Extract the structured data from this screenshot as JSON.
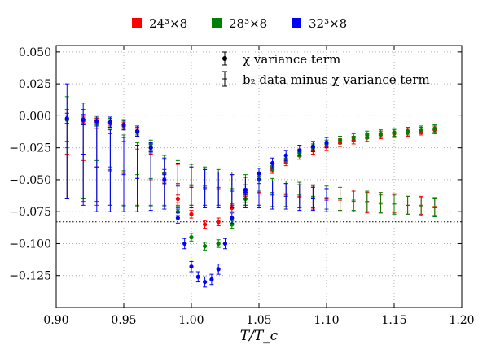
{
  "chart_data": {
    "type": "scatter",
    "xlabel": "T/T_c",
    "xlim": [
      0.9,
      1.2
    ],
    "ylim": [
      -0.15,
      0.055
    ],
    "x_ticks": [
      0.9,
      0.95,
      1.0,
      1.05,
      1.1,
      1.15,
      1.2
    ],
    "x_tick_labels": [
      "0.90",
      "0.95",
      "1.00",
      "1.05",
      "1.10",
      "1.15",
      "1.20"
    ],
    "y_ticks": [
      0.05,
      0.025,
      0.0,
      -0.025,
      -0.05,
      -0.075,
      -0.1,
      -0.125
    ],
    "y_tick_labels": [
      "0.050",
      "0.025",
      "0.000",
      "−0.025",
      "−0.050",
      "−0.075",
      "−0.100",
      "−0.125"
    ],
    "grid": true,
    "reference_line": {
      "y": -0.083,
      "style": "dotted"
    },
    "top_legend": [
      {
        "label": "24³×8",
        "color": "#ff0000"
      },
      {
        "label": "28³×8",
        "color": "#008000"
      },
      {
        "label": "32³×8",
        "color": "#0000ff"
      }
    ],
    "inner_legend": {
      "placement": "top-center",
      "entries": [
        {
          "label": "χ variance term",
          "marker": "filled-circle"
        },
        {
          "label": "b₂ data minus χ variance term",
          "marker": "cap-errorbar"
        }
      ]
    },
    "series": [
      {
        "name": "24³×8",
        "color": "#ff0000",
        "variance_term": {
          "x": [
            0.908,
            0.92,
            0.93,
            0.94,
            0.95,
            0.96,
            0.97,
            0.98,
            0.99,
            1.0,
            1.01,
            1.02,
            1.03,
            1.04,
            1.05,
            1.06,
            1.07,
            1.08,
            1.09,
            1.1,
            1.11,
            1.12,
            1.13,
            1.14,
            1.15,
            1.16,
            1.17,
            1.18
          ],
          "y": [
            -0.003,
            -0.004,
            -0.005,
            -0.006,
            -0.008,
            -0.013,
            -0.025,
            -0.045,
            -0.065,
            -0.077,
            -0.085,
            -0.083,
            -0.072,
            -0.06,
            -0.05,
            -0.042,
            -0.036,
            -0.031,
            -0.027,
            -0.024,
            -0.021,
            -0.019,
            -0.017,
            -0.015,
            -0.014,
            -0.013,
            -0.012,
            -0.011
          ],
          "err": 0.003
        },
        "difference_term": {
          "x": [
            0.908,
            0.92,
            0.93,
            0.94,
            0.95,
            0.96,
            0.97,
            0.98,
            0.99,
            1.0,
            1.01,
            1.02,
            1.03,
            1.04,
            1.05,
            1.06,
            1.07,
            1.08,
            1.09,
            1.1,
            1.11,
            1.12,
            1.13,
            1.14,
            1.15,
            1.16,
            1.17,
            1.18
          ],
          "y": [
            -0.03,
            -0.035,
            -0.04,
            -0.042,
            -0.045,
            -0.048,
            -0.05,
            -0.052,
            -0.054,
            -0.055,
            -0.056,
            -0.057,
            -0.058,
            -0.059,
            -0.06,
            -0.061,
            -0.062,
            -0.063,
            -0.064,
            -0.065,
            -0.066,
            -0.067,
            -0.068,
            -0.069,
            -0.069,
            -0.07,
            -0.07,
            -0.071
          ],
          "err": [
            0.035,
            0.032,
            0.03,
            0.028,
            0.025,
            0.022,
            0.02,
            0.018,
            0.016,
            0.015,
            0.014,
            0.013,
            0.012,
            0.011,
            0.01,
            0.01,
            0.009,
            0.009,
            0.009,
            0.008,
            0.008,
            0.008,
            0.008,
            0.007,
            0.007,
            0.007,
            0.007,
            0.007
          ]
        }
      },
      {
        "name": "28³×8",
        "color": "#008000",
        "variance_term": {
          "x": [
            0.908,
            0.92,
            0.93,
            0.94,
            0.95,
            0.96,
            0.97,
            0.98,
            0.99,
            1.0,
            1.01,
            1.02,
            1.03,
            1.04,
            1.05,
            1.06,
            1.07,
            1.08,
            1.09,
            1.1,
            1.11,
            1.12,
            1.13,
            1.14,
            1.15,
            1.16,
            1.17,
            1.18
          ],
          "y": [
            -0.003,
            -0.003,
            -0.004,
            -0.005,
            -0.007,
            -0.012,
            -0.022,
            -0.045,
            -0.075,
            -0.095,
            -0.102,
            -0.1,
            -0.085,
            -0.065,
            -0.05,
            -0.04,
            -0.034,
            -0.029,
            -0.025,
            -0.022,
            -0.019,
            -0.017,
            -0.015,
            -0.014,
            -0.013,
            -0.012,
            -0.011,
            -0.01
          ],
          "err": 0.003
        },
        "difference_term": {
          "x": [
            0.908,
            0.92,
            0.93,
            0.94,
            0.95,
            0.96,
            0.97,
            0.98,
            0.99,
            1.0,
            1.01,
            1.02,
            1.03,
            1.04,
            1.05,
            1.06,
            1.07,
            1.08,
            1.09,
            1.1,
            1.11,
            1.12,
            1.13,
            1.14,
            1.15,
            1.16,
            1.17,
            1.18
          ],
          "y": [
            -0.025,
            -0.03,
            -0.035,
            -0.04,
            -0.043,
            -0.046,
            -0.049,
            -0.051,
            -0.053,
            -0.054,
            -0.055,
            -0.056,
            -0.057,
            -0.058,
            -0.059,
            -0.06,
            -0.061,
            -0.062,
            -0.063,
            -0.064,
            -0.065,
            -0.066,
            -0.067,
            -0.068,
            -0.069,
            -0.07,
            -0.071,
            -0.072
          ],
          "err": [
            0.04,
            0.035,
            0.032,
            0.03,
            0.028,
            0.025,
            0.022,
            0.02,
            0.018,
            0.016,
            0.015,
            0.014,
            0.013,
            0.012,
            0.011,
            0.011,
            0.01,
            0.01,
            0.009,
            0.009,
            0.009,
            0.008,
            0.008,
            0.008,
            0.008,
            0.007,
            0.007,
            0.007
          ]
        }
      },
      {
        "name": "32³×8",
        "color": "#0000ff",
        "variance_term": {
          "x": [
            0.908,
            0.92,
            0.93,
            0.94,
            0.95,
            0.96,
            0.97,
            0.98,
            0.99,
            0.995,
            1.0,
            1.005,
            1.01,
            1.015,
            1.02,
            1.025,
            1.03,
            1.04,
            1.05,
            1.06,
            1.07,
            1.08,
            1.09,
            1.1
          ],
          "y": [
            -0.002,
            -0.003,
            -0.004,
            -0.005,
            -0.007,
            -0.012,
            -0.025,
            -0.05,
            -0.08,
            -0.1,
            -0.118,
            -0.126,
            -0.13,
            -0.128,
            -0.12,
            -0.1,
            -0.08,
            -0.058,
            -0.045,
            -0.037,
            -0.031,
            -0.027,
            -0.024,
            -0.021
          ],
          "err": 0.004
        },
        "difference_term": {
          "x": [
            0.908,
            0.92,
            0.93,
            0.94,
            0.95,
            0.96,
            0.97,
            0.98,
            0.99,
            1.0,
            1.01,
            1.02,
            1.03,
            1.04,
            1.05,
            1.06,
            1.07,
            1.08,
            1.09,
            1.1
          ],
          "y": [
            -0.02,
            -0.03,
            -0.04,
            -0.043,
            -0.046,
            -0.049,
            -0.051,
            -0.053,
            -0.055,
            -0.056,
            -0.057,
            -0.058,
            -0.059,
            -0.06,
            -0.061,
            -0.062,
            -0.063,
            -0.064,
            -0.065,
            -0.066
          ],
          "err": [
            0.045,
            0.04,
            0.035,
            0.032,
            0.029,
            0.026,
            0.023,
            0.02,
            0.018,
            0.016,
            0.015,
            0.014,
            0.013,
            0.012,
            0.011,
            0.011,
            0.01,
            0.01,
            0.009,
            0.009
          ]
        }
      }
    ]
  }
}
